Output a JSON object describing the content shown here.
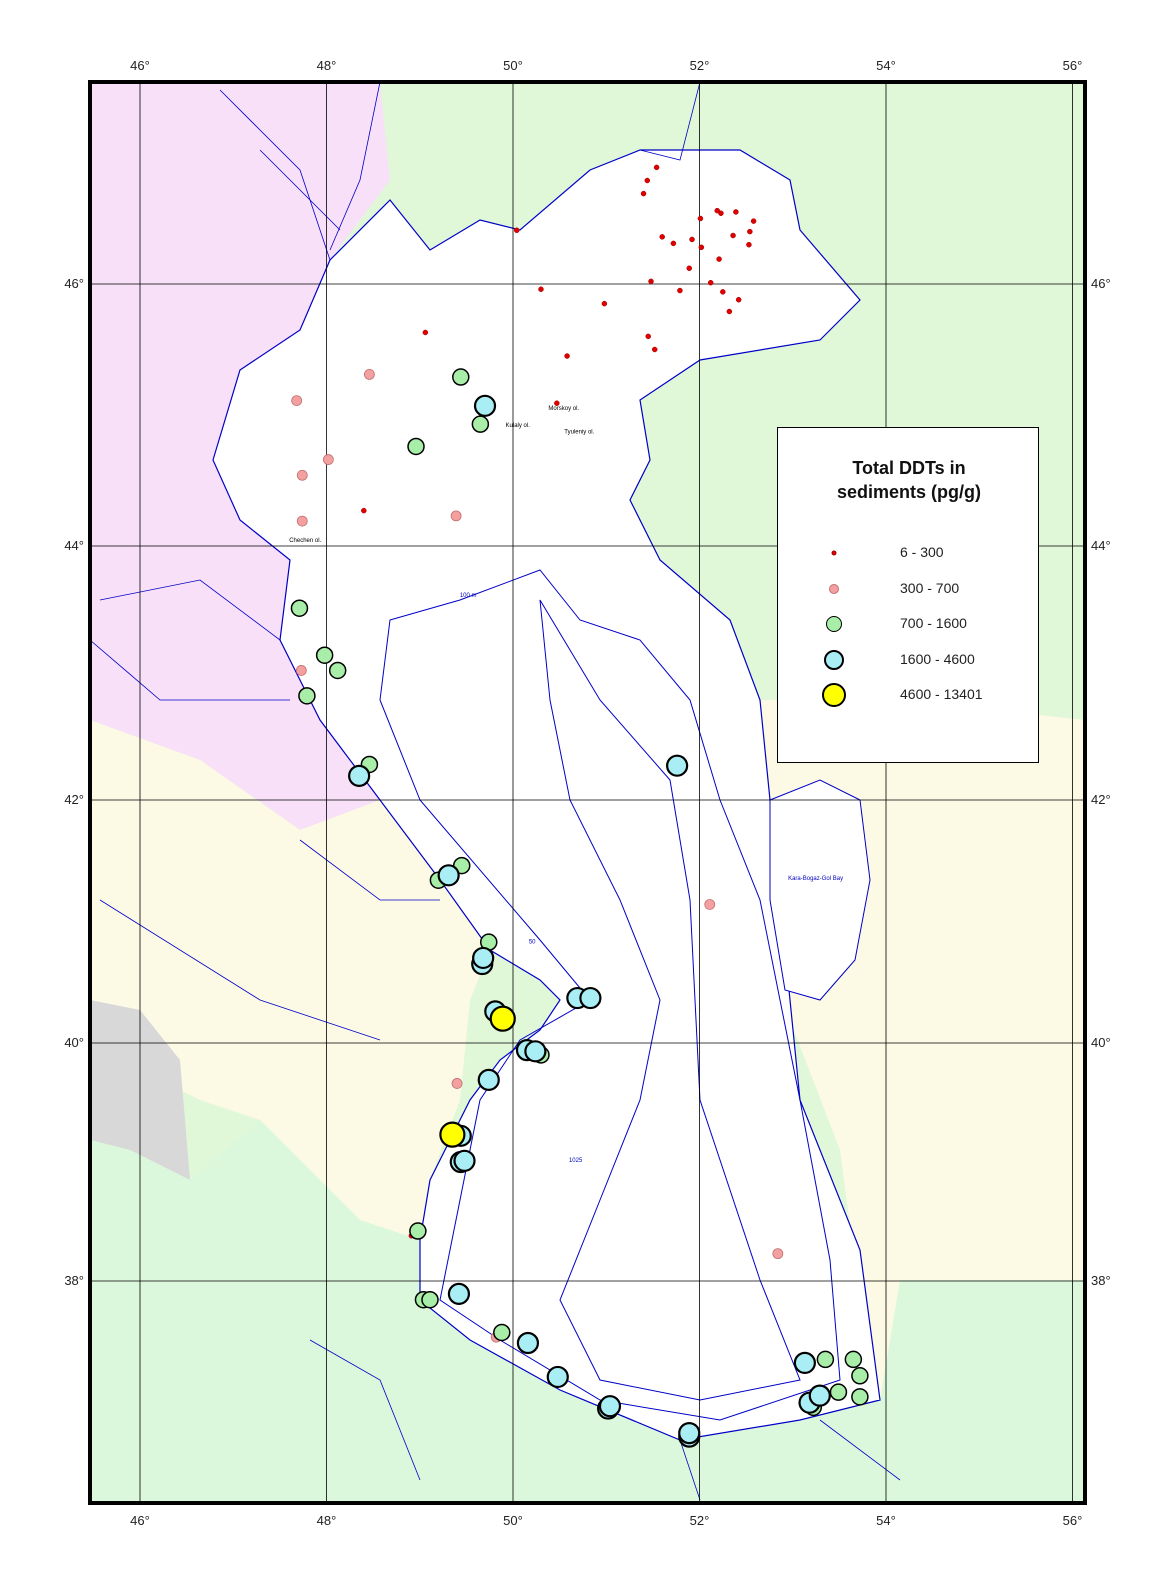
{
  "map": {
    "legend": {
      "title_line1": "Total DDTs in",
      "title_line2": "sediments (pg/g)",
      "classes": [
        {
          "label": "6 - 300",
          "fill": "#e00000",
          "stroke": "#a00000"
        },
        {
          "label": "300 - 700",
          "fill": "#f4a0a0",
          "stroke": "#c07070"
        },
        {
          "label": "700 - 1600",
          "fill": "#a8eea8",
          "stroke": "#000000"
        },
        {
          "label": "1600 - 4600",
          "fill": "#a8eef4",
          "stroke": "#000000"
        },
        {
          "label": "4600 - 13401",
          "fill": "#ffff00",
          "stroke": "#000000"
        }
      ]
    },
    "lon_ticks": [
      "46°",
      "48°",
      "50°",
      "52°",
      "54°",
      "56°"
    ],
    "lat_ticks": [
      "46°",
      "44°",
      "42°",
      "40°",
      "38°"
    ],
    "place_labels": [
      {
        "text": "Morskoy ol.",
        "lon": 50.38,
        "lat": 45.04
      },
      {
        "text": "Kulaly ol.",
        "lon": 49.92,
        "lat": 44.91
      },
      {
        "text": "Tyuleniy ol.",
        "lon": 50.55,
        "lat": 44.86
      },
      {
        "text": "Chechen ol.",
        "lon": 47.6,
        "lat": 44.03
      },
      {
        "text": "Kara-Bogaz-Gol Bay",
        "lon": 52.95,
        "lat": 41.34,
        "blue": true
      },
      {
        "text": "100 m",
        "lon": 49.43,
        "lat": 43.6,
        "blue": true
      },
      {
        "text": "50",
        "lon": 50.17,
        "lat": 40.82,
        "blue": true
      },
      {
        "text": "1025",
        "lon": 50.6,
        "lat": 39.0,
        "blue": true
      }
    ],
    "colors": {
      "sea": "#ffffff",
      "coast": "#0000c8",
      "russia": "#f8e0f8",
      "kazakhstan": "#e0f8d8",
      "azerbaijan_turkmenistan": "#fcfae4",
      "iran": "#dcf8dc",
      "armenia": "#d8d8d8"
    },
    "samples": [
      {
        "c": 0,
        "lon": 50.04,
        "lat": 46.41
      },
      {
        "c": 0,
        "lon": 50.3,
        "lat": 45.96
      },
      {
        "c": 0,
        "lon": 49.06,
        "lat": 45.63
      },
      {
        "c": 0,
        "lon": 50.58,
        "lat": 45.45
      },
      {
        "c": 0,
        "lon": 50.47,
        "lat": 45.09
      },
      {
        "c": 0,
        "lon": 51.4,
        "lat": 46.69
      },
      {
        "c": 0,
        "lon": 51.44,
        "lat": 46.79
      },
      {
        "c": 0,
        "lon": 51.54,
        "lat": 46.89
      },
      {
        "c": 0,
        "lon": 51.6,
        "lat": 46.36
      },
      {
        "c": 0,
        "lon": 51.72,
        "lat": 46.31
      },
      {
        "c": 0,
        "lon": 51.92,
        "lat": 46.34
      },
      {
        "c": 0,
        "lon": 52.01,
        "lat": 46.5
      },
      {
        "c": 0,
        "lon": 52.19,
        "lat": 46.56
      },
      {
        "c": 0,
        "lon": 52.23,
        "lat": 46.54
      },
      {
        "c": 0,
        "lon": 52.39,
        "lat": 46.55
      },
      {
        "c": 0,
        "lon": 52.58,
        "lat": 46.48
      },
      {
        "c": 0,
        "lon": 52.54,
        "lat": 46.4
      },
      {
        "c": 0,
        "lon": 52.53,
        "lat": 46.3
      },
      {
        "c": 0,
        "lon": 52.36,
        "lat": 46.37
      },
      {
        "c": 0,
        "lon": 52.21,
        "lat": 46.19
      },
      {
        "c": 0,
        "lon": 52.02,
        "lat": 46.28
      },
      {
        "c": 0,
        "lon": 51.89,
        "lat": 46.12
      },
      {
        "c": 0,
        "lon": 51.79,
        "lat": 45.95
      },
      {
        "c": 0,
        "lon": 51.48,
        "lat": 46.02
      },
      {
        "c": 0,
        "lon": 52.12,
        "lat": 46.01
      },
      {
        "c": 0,
        "lon": 52.25,
        "lat": 45.94
      },
      {
        "c": 0,
        "lon": 52.42,
        "lat": 45.88
      },
      {
        "c": 0,
        "lon": 52.32,
        "lat": 45.79
      },
      {
        "c": 0,
        "lon": 50.98,
        "lat": 45.85
      },
      {
        "c": 0,
        "lon": 51.45,
        "lat": 45.6
      },
      {
        "c": 0,
        "lon": 51.52,
        "lat": 45.5
      },
      {
        "c": 0,
        "lon": 48.4,
        "lat": 44.27
      },
      {
        "c": 0,
        "lon": 48.91,
        "lat": 38.38
      },
      {
        "c": 1,
        "lon": 47.68,
        "lat": 45.11
      },
      {
        "c": 1,
        "lon": 48.46,
        "lat": 45.31
      },
      {
        "c": 1,
        "lon": 47.74,
        "lat": 44.54
      },
      {
        "c": 1,
        "lon": 48.02,
        "lat": 44.66
      },
      {
        "c": 1,
        "lon": 47.74,
        "lat": 44.19
      },
      {
        "c": 1,
        "lon": 49.39,
        "lat": 44.23
      },
      {
        "c": 1,
        "lon": 47.73,
        "lat": 43.02
      },
      {
        "c": 1,
        "lon": 48.33,
        "lat": 42.23
      },
      {
        "c": 1,
        "lon": 52.11,
        "lat": 41.14
      },
      {
        "c": 1,
        "lon": 49.4,
        "lat": 39.66
      },
      {
        "c": 1,
        "lon": 52.84,
        "lat": 38.23
      },
      {
        "c": 1,
        "lon": 49.82,
        "lat": 37.52
      },
      {
        "c": 2,
        "lon": 49.44,
        "lat": 45.29
      },
      {
        "c": 2,
        "lon": 49.65,
        "lat": 44.93
      },
      {
        "c": 2,
        "lon": 48.96,
        "lat": 44.76
      },
      {
        "c": 2,
        "lon": 47.71,
        "lat": 43.51
      },
      {
        "c": 2,
        "lon": 47.98,
        "lat": 43.14
      },
      {
        "c": 2,
        "lon": 48.12,
        "lat": 43.02
      },
      {
        "c": 2,
        "lon": 47.79,
        "lat": 42.82
      },
      {
        "c": 2,
        "lon": 48.46,
        "lat": 42.28
      },
      {
        "c": 2,
        "lon": 49.2,
        "lat": 41.34
      },
      {
        "c": 2,
        "lon": 49.45,
        "lat": 41.46
      },
      {
        "c": 2,
        "lon": 49.74,
        "lat": 40.83
      },
      {
        "c": 2,
        "lon": 50.3,
        "lat": 39.9
      },
      {
        "c": 2,
        "lon": 48.98,
        "lat": 38.42
      },
      {
        "c": 2,
        "lon": 49.04,
        "lat": 37.84
      },
      {
        "c": 2,
        "lon": 49.11,
        "lat": 37.84
      },
      {
        "c": 2,
        "lon": 49.88,
        "lat": 37.56
      },
      {
        "c": 2,
        "lon": 53.35,
        "lat": 37.33
      },
      {
        "c": 2,
        "lon": 53.65,
        "lat": 37.33
      },
      {
        "c": 2,
        "lon": 53.72,
        "lat": 37.19
      },
      {
        "c": 2,
        "lon": 53.49,
        "lat": 37.05
      },
      {
        "c": 2,
        "lon": 53.72,
        "lat": 37.01
      },
      {
        "c": 2,
        "lon": 53.22,
        "lat": 36.92
      },
      {
        "c": 3,
        "lon": 49.7,
        "lat": 45.07
      },
      {
        "c": 3,
        "lon": 51.76,
        "lat": 42.27
      },
      {
        "c": 3,
        "lon": 48.35,
        "lat": 42.19
      },
      {
        "c": 3,
        "lon": 49.31,
        "lat": 41.38
      },
      {
        "c": 3,
        "lon": 49.67,
        "lat": 40.65
      },
      {
        "c": 3,
        "lon": 49.68,
        "lat": 40.7
      },
      {
        "c": 3,
        "lon": 49.81,
        "lat": 40.26
      },
      {
        "c": 3,
        "lon": 50.69,
        "lat": 40.37
      },
      {
        "c": 3,
        "lon": 50.83,
        "lat": 40.37
      },
      {
        "c": 3,
        "lon": 50.15,
        "lat": 39.94
      },
      {
        "c": 3,
        "lon": 50.24,
        "lat": 39.93
      },
      {
        "c": 3,
        "lon": 49.74,
        "lat": 39.69
      },
      {
        "c": 3,
        "lon": 49.44,
        "lat": 39.22
      },
      {
        "c": 3,
        "lon": 49.44,
        "lat": 39.0
      },
      {
        "c": 3,
        "lon": 49.48,
        "lat": 39.01
      },
      {
        "c": 3,
        "lon": 49.42,
        "lat": 37.89
      },
      {
        "c": 3,
        "lon": 50.16,
        "lat": 37.47
      },
      {
        "c": 3,
        "lon": 50.48,
        "lat": 37.18
      },
      {
        "c": 3,
        "lon": 51.02,
        "lat": 36.91
      },
      {
        "c": 3,
        "lon": 51.04,
        "lat": 36.93
      },
      {
        "c": 3,
        "lon": 51.89,
        "lat": 36.67
      },
      {
        "c": 3,
        "lon": 51.89,
        "lat": 36.7
      },
      {
        "c": 3,
        "lon": 53.13,
        "lat": 37.3
      },
      {
        "c": 3,
        "lon": 53.18,
        "lat": 36.96
      },
      {
        "c": 3,
        "lon": 53.29,
        "lat": 37.02
      },
      {
        "c": 4,
        "lon": 49.89,
        "lat": 40.2
      },
      {
        "c": 4,
        "lon": 49.35,
        "lat": 39.23
      }
    ]
  }
}
